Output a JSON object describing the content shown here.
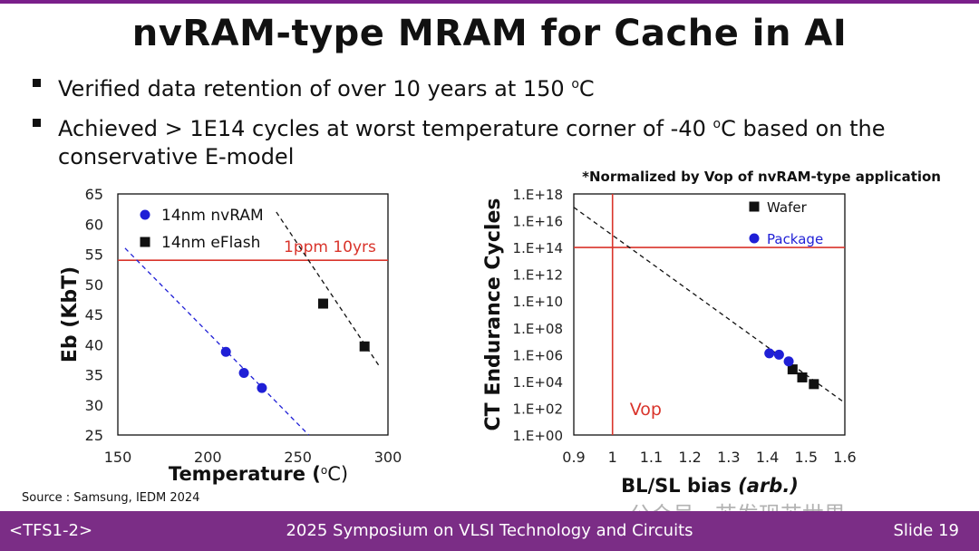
{
  "slide": {
    "title": "nvRAM-type MRAM for Cache in AI",
    "bullets": [
      {
        "text": "Verified data retention of over 10 years at 150 ",
        "sup": "o",
        "tail": "C"
      },
      {
        "text": "Achieved > 1E14 cycles at worst temperature corner of -40 ",
        "sup": "o",
        "tail": "C based on the conservative E-model"
      }
    ],
    "note": "*Normalized by Vop of nvRAM-type application",
    "source": "Source : Samsung, IEDM 2024",
    "footer_left": "<TFS1-2>",
    "footer_center": "2025 Symposium on VLSI Technology and Circuits",
    "footer_right": "Slide 19",
    "watermark": "公众号 · 芯发现芯世界",
    "colors": {
      "accent": "#7b2d86",
      "blue": "#1f1fd6",
      "red": "#d9342b",
      "black": "#111111"
    }
  },
  "chart_data": [
    {
      "type": "scatter",
      "title": "",
      "xlabel": "Temperature",
      "xlabel_unit_sup": "o",
      "xlabel_unit_tail": "C",
      "ylabel": "Eb (KbT)",
      "xlim": [
        150,
        300
      ],
      "ylim": [
        25,
        65
      ],
      "xticks": [
        150,
        200,
        250,
        300
      ],
      "yticks": [
        25,
        30,
        35,
        40,
        45,
        50,
        55,
        60,
        65
      ],
      "series": [
        {
          "name": "14nm nvRAM",
          "marker": "circle",
          "color": "#1f1fd6",
          "x": [
            210,
            220,
            230
          ],
          "y": [
            38.8,
            35.3,
            32.8
          ],
          "trend": {
            "x": [
              154,
              256
            ],
            "y": [
              56,
              25
            ]
          }
        },
        {
          "name": "14nm eFlash",
          "marker": "square",
          "color": "#111111",
          "x": [
            264,
            287
          ],
          "y": [
            46.8,
            39.7
          ],
          "trend": {
            "x": [
              238,
              295
            ],
            "y": [
              62,
              36.5
            ]
          }
        }
      ],
      "hline": {
        "y": 54,
        "label": "1ppm 10yrs",
        "color": "#d9342b"
      }
    },
    {
      "type": "scatter",
      "title": "",
      "xlabel": "BL/SL bias",
      "xlabel_unit": "(arb.)",
      "ylabel": "CT Endurance Cycles",
      "xlim": [
        0.9,
        1.6
      ],
      "ylim": [
        0,
        18
      ],
      "xticks": [
        0.9,
        1,
        1.1,
        1.2,
        1.3,
        1.4,
        1.5,
        1.6
      ],
      "yticks": [
        "1.E+00",
        "1.E+02",
        "1.E+04",
        "1.E+06",
        "1.E+08",
        "1.E+10",
        "1.E+12",
        "1.E+14",
        "1.E+16",
        "1.E+18"
      ],
      "series": [
        {
          "name": "Wafer",
          "marker": "square",
          "color": "#111111",
          "x": [
            1.465,
            1.49,
            1.52
          ],
          "y_log10": [
            4.9,
            4.3,
            3.8
          ]
        },
        {
          "name": "Package",
          "marker": "circle",
          "color": "#1f1fd6",
          "x": [
            1.405,
            1.43,
            1.455
          ],
          "y_log10": [
            6.1,
            6.0,
            5.5
          ]
        }
      ],
      "trend": {
        "x": [
          0.9,
          1.6
        ],
        "y_log10": [
          17,
          2.4
        ]
      },
      "hline": {
        "y_log10": 14,
        "color": "#d9342b"
      },
      "vline": {
        "x": 1.0,
        "label": "Vop",
        "color": "#d9342b"
      }
    }
  ]
}
